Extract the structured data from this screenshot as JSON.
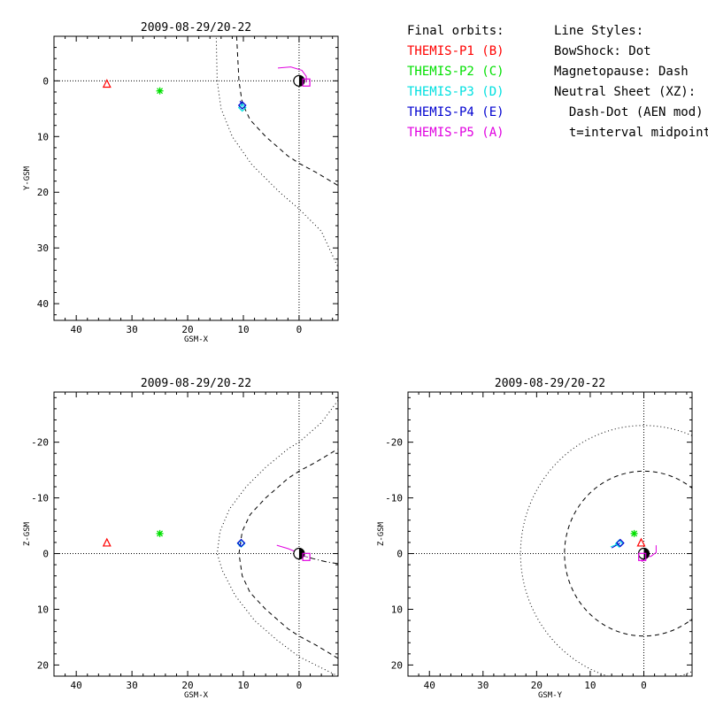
{
  "legend": {
    "orbits_title": "Final orbits:",
    "orbits": [
      {
        "label": "THEMIS-P1 (B)",
        "color": "#ff0000"
      },
      {
        "label": "THEMIS-P2 (C)",
        "color": "#00e000"
      },
      {
        "label": "THEMIS-P3 (D)",
        "color": "#00e0e0"
      },
      {
        "label": "THEMIS-P4 (E)",
        "color": "#0000d0"
      },
      {
        "label": "THEMIS-P5 (A)",
        "color": "#e000e0"
      }
    ],
    "styles_title": "Line Styles:",
    "styles": [
      "BowShock: Dot",
      "Magnetopause: Dash",
      "Neutral Sheet (XZ):",
      "  Dash-Dot (AEN mod)",
      "  t=interval midpoint"
    ]
  },
  "chart_data": [
    {
      "type": "scatter",
      "title": "2009-08-29/20-22",
      "xlabel": "GSM-X",
      "ylabel": "Y-GSM",
      "xlim": [
        44,
        -7
      ],
      "ylim": [
        -8,
        43
      ],
      "x_ticks": [
        40,
        30,
        20,
        10,
        0
      ],
      "y_ticks": [
        0,
        10,
        20,
        30,
        40
      ],
      "ref_lines": {
        "x": 0,
        "y": 0
      },
      "spacecraft": [
        {
          "probe": "THEMIS-P1 (B)",
          "marker": "triangle",
          "color": "#ff0000",
          "x": 34.5,
          "y": 0.5
        },
        {
          "probe": "THEMIS-P2 (C)",
          "marker": "asterisk",
          "color": "#00e000",
          "x": 25,
          "y": 1.8
        },
        {
          "probe": "THEMIS-P3 (D)",
          "marker": "diamond",
          "color": "#00e0e0",
          "x": 10.2,
          "y": 4.8
        },
        {
          "probe": "THEMIS-P4 (E)",
          "marker": "diamond",
          "color": "#0000d0",
          "x": 10.2,
          "y": 4.4
        },
        {
          "probe": "THEMIS-P5 (A)",
          "marker": "square",
          "color": "#e000e0",
          "x": -1.3,
          "y": 0.3
        }
      ],
      "orbit_tracks": [
        {
          "probe": "THEMIS-P5 (A)",
          "color": "#e000e0",
          "points": [
            [
              3.8,
              -2.3
            ],
            [
              1.5,
              -2.5
            ],
            [
              -0.5,
              -1.9
            ],
            [
              -1.3,
              -0.8
            ],
            [
              -1.3,
              0.3
            ]
          ]
        },
        {
          "probe": "THEMIS-P3 (D)",
          "color": "#00e0e0",
          "points": [
            [
              10.3,
              3.8
            ],
            [
              10.2,
              4.8
            ]
          ]
        },
        {
          "probe": "THEMIS-P4 (E)",
          "color": "#0000d0",
          "points": [
            [
              10.6,
              3.6
            ],
            [
              10.2,
              4.4
            ]
          ]
        }
      ],
      "boundaries": [
        {
          "name": "BowShock",
          "style": "dotted",
          "points": [
            [
              14.9,
              -9
            ],
            [
              14.7,
              0
            ],
            [
              14.0,
              5
            ],
            [
              12.0,
              10
            ],
            [
              8.5,
              15
            ],
            [
              3.5,
              20
            ],
            [
              0,
              23
            ],
            [
              -4,
              27
            ],
            [
              -7,
              33.5
            ]
          ]
        },
        {
          "name": "Magnetopause",
          "style": "dashed",
          "points": [
            [
              11.2,
              -8
            ],
            [
              10.8,
              0
            ],
            [
              10.2,
              4
            ],
            [
              8.8,
              7
            ],
            [
              6,
              10
            ],
            [
              2,
              13.5
            ],
            [
              0,
              14.8
            ],
            [
              -3,
              16.4
            ],
            [
              -7,
              18.8
            ]
          ]
        }
      ],
      "earth": {
        "x": 0,
        "y": 0
      }
    },
    {
      "type": "scatter",
      "title": "2009-08-29/20-22",
      "xlabel": "GSM-X",
      "ylabel": "Z-GSM",
      "xlim": [
        44,
        -7
      ],
      "ylim": [
        -29,
        22
      ],
      "x_ticks": [
        40,
        30,
        20,
        10,
        0
      ],
      "y_ticks": [
        20,
        10,
        0,
        -10,
        -20
      ],
      "ref_lines": {
        "x": 0,
        "y": 0
      },
      "spacecraft": [
        {
          "probe": "THEMIS-P1 (B)",
          "marker": "triangle",
          "color": "#ff0000",
          "x": 34.5,
          "y": -2.0
        },
        {
          "probe": "THEMIS-P2 (C)",
          "marker": "asterisk",
          "color": "#00e000",
          "x": 25,
          "y": -3.6
        },
        {
          "probe": "THEMIS-P3 (D)",
          "marker": "diamond",
          "color": "#00e0e0",
          "x": 10.4,
          "y": -1.8
        },
        {
          "probe": "THEMIS-P4 (E)",
          "marker": "diamond",
          "color": "#0000d0",
          "x": 10.4,
          "y": -1.9
        },
        {
          "probe": "THEMIS-P5 (A)",
          "marker": "square",
          "color": "#e000e0",
          "x": -1.3,
          "y": 0.6
        }
      ],
      "orbit_tracks": [
        {
          "probe": "THEMIS-P5 (A)",
          "color": "#e000e0",
          "points": [
            [
              4.0,
              -1.5
            ],
            [
              2,
              -0.9
            ],
            [
              0,
              -0.1
            ],
            [
              -1.3,
              0.6
            ]
          ]
        },
        {
          "probe": "THEMIS-P3 (D)",
          "color": "#00e0e0",
          "points": [
            [
              10.6,
              -1.5
            ],
            [
              10.4,
              -1.8
            ]
          ]
        },
        {
          "probe": "THEMIS-P4 (E)",
          "color": "#0000d0",
          "points": [
            [
              10.8,
              -1.3
            ],
            [
              10.4,
              -1.9
            ]
          ]
        }
      ],
      "boundaries": [
        {
          "name": "BowShock",
          "style": "dotted",
          "points": [
            [
              -7,
              22
            ],
            [
              -4,
              20.5
            ],
            [
              0,
              18.5
            ],
            [
              4,
              15.5
            ],
            [
              8,
              12
            ],
            [
              11.5,
              7.5
            ],
            [
              13.8,
              3
            ],
            [
              14.7,
              0
            ],
            [
              14.2,
              -4
            ],
            [
              12.5,
              -8
            ],
            [
              9.5,
              -12
            ],
            [
              6,
              -15.5
            ],
            [
              2,
              -18.8
            ],
            [
              0,
              -20
            ],
            [
              -4,
              -23.5
            ],
            [
              -7,
              -27.5
            ]
          ]
        },
        {
          "name": "Magnetopause",
          "style": "dashed",
          "points": [
            [
              -7,
              18.8
            ],
            [
              -3,
              16.4
            ],
            [
              0,
              14.8
            ],
            [
              2,
              13.5
            ],
            [
              6,
              10
            ],
            [
              8.8,
              7
            ],
            [
              10.2,
              4
            ],
            [
              10.8,
              0
            ],
            [
              10.2,
              -4
            ],
            [
              8.8,
              -7
            ],
            [
              6,
              -10
            ],
            [
              2,
              -13.5
            ],
            [
              0,
              -14.8
            ],
            [
              -3,
              -16.4
            ],
            [
              -7,
              -18.8
            ]
          ]
        },
        {
          "name": "Neutral Sheet",
          "style": "dashdot",
          "points": [
            [
              0,
              0.2
            ],
            [
              -2.5,
              0.9
            ],
            [
              -5,
              1.5
            ],
            [
              -7,
              1.8
            ]
          ]
        }
      ],
      "earth": {
        "x": 0,
        "y": 0
      }
    },
    {
      "type": "scatter",
      "title": "2009-08-29/20-22",
      "xlabel": "GSM-Y",
      "ylabel": "Z-GSM",
      "xlim": [
        44,
        -9
      ],
      "ylim": [
        -29,
        22
      ],
      "x_ticks": [
        40,
        30,
        20,
        10,
        0
      ],
      "y_ticks": [
        20,
        10,
        0,
        -10,
        -20
      ],
      "ref_lines": {
        "x": 0,
        "y": 0
      },
      "spacecraft": [
        {
          "probe": "THEMIS-P1 (B)",
          "marker": "triangle",
          "color": "#ff0000",
          "x": 0.5,
          "y": -2.0
        },
        {
          "probe": "THEMIS-P2 (C)",
          "marker": "asterisk",
          "color": "#00e000",
          "x": 1.8,
          "y": -3.6
        },
        {
          "probe": "THEMIS-P3 (D)",
          "marker": "diamond",
          "color": "#00e0e0",
          "x": 4.6,
          "y": -1.8
        },
        {
          "probe": "THEMIS-P4 (E)",
          "marker": "diamond",
          "color": "#0000d0",
          "x": 4.4,
          "y": -1.9
        },
        {
          "probe": "THEMIS-P5 (A)",
          "marker": "square",
          "color": "#e000e0",
          "x": 0.3,
          "y": 0.6
        }
      ],
      "orbit_tracks": [
        {
          "probe": "THEMIS-P5 (A)",
          "color": "#e000e0",
          "points": [
            [
              -2.3,
              -1.5
            ],
            [
              -2.3,
              -0.2
            ],
            [
              -1.3,
              0.5
            ],
            [
              0.3,
              0.6
            ],
            [
              0.3,
              1.5
            ]
          ]
        },
        {
          "probe": "THEMIS-P3 (D)",
          "color": "#00e0e0",
          "points": [
            [
              6.2,
              -1.2
            ],
            [
              4.6,
              -1.8
            ]
          ]
        },
        {
          "probe": "THEMIS-P4 (E)",
          "color": "#0000d0",
          "points": [
            [
              6.0,
              -1.0
            ],
            [
              4.4,
              -1.9
            ]
          ]
        }
      ],
      "boundaries": [
        {
          "name": "BowShock",
          "style": "dotted",
          "center": [
            0,
            0
          ],
          "radius": 23
        },
        {
          "name": "Magnetopause",
          "style": "dashed",
          "center": [
            0,
            0
          ],
          "radius": 14.8
        }
      ],
      "earth": {
        "x": 0,
        "y": 0
      }
    }
  ]
}
